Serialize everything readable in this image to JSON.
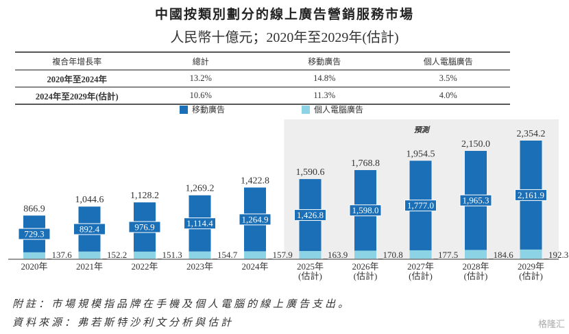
{
  "title": "中國按類別劃分的線上廣告營銷服務市場",
  "subtitle": "人民幣十億元；2020年至2029年(估計)",
  "cagr_table": {
    "headers": [
      "複合年增長率",
      "總計",
      "移動廣告",
      "個人電腦廣告"
    ],
    "rows": [
      [
        "2020年至2024年",
        "13.2%",
        "14.8%",
        "3.5%"
      ],
      [
        "2024年至2029年(估計)",
        "10.6%",
        "11.3%",
        "4.0%"
      ]
    ]
  },
  "forecast_label": "預測",
  "footnote": "附註：市場規模指品牌在手機及個人電腦的線上廣告支出。",
  "source": "資料來源：弗若斯特沙利文分析與估計",
  "watermark": "格隆汇",
  "colors": {
    "mobile": "#1b6fb6",
    "pc": "#8dd3e6",
    "forecast_bg": "#eeeeee"
  },
  "chart_data": {
    "type": "bar",
    "stacked": true,
    "categories": [
      "2020年",
      "2021年",
      "2022年",
      "2023年",
      "2024年",
      "2025年",
      "2026年",
      "2027年",
      "2028年",
      "2029年"
    ],
    "category_sublabels": [
      "",
      "",
      "",
      "",
      "",
      "(估計)",
      "(估計)",
      "(估計)",
      "(估計)",
      "(估計)"
    ],
    "series": [
      {
        "name": "移動廣告",
        "values": [
          "729.3",
          "892.4",
          "976.9",
          "1,114.4",
          "1,264.9",
          "1,426.8",
          "1,598.0",
          "1,777.0",
          "1,965.3",
          "2,161.9"
        ]
      },
      {
        "name": "個人電腦廣告",
        "values": [
          "137.6",
          "152.2",
          "151.3",
          "154.7",
          "157.9",
          "163.9",
          "170.8",
          "177.5",
          "184.6",
          "192.3"
        ]
      }
    ],
    "totals": [
      "866.9",
      "1,044.6",
      "1,128.2",
      "1,269.2",
      "1,422.8",
      "1,590.6",
      "1,768.8",
      "1,954.5",
      "2,150.0",
      "2,354.2"
    ],
    "forecast_start": "2025年",
    "ylim": [
      0,
      2400
    ]
  }
}
